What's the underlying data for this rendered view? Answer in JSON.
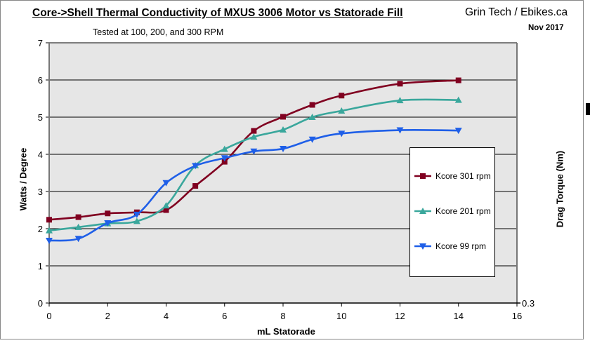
{
  "chart_data": {
    "type": "line",
    "title": "Core->Shell Thermal Conductivity of MXUS 3006 Motor vs Statorade Fill",
    "subtitle": "Tested at 100, 200, and 300 RPM",
    "brand": "Grin Tech / Ebikes.ca",
    "date": "Nov 2017",
    "xlabel": "mL Statorade",
    "ylabel": "Watts / Degree",
    "y2label": "Drag Torque (Nm)",
    "y2_tick": "0.3",
    "xlim": [
      0,
      16
    ],
    "ylim": [
      0,
      7
    ],
    "xticks": [
      "0",
      "2",
      "4",
      "6",
      "8",
      "10",
      "12",
      "14",
      "16"
    ],
    "yticks": [
      "0",
      "1",
      "2",
      "3",
      "4",
      "5",
      "6",
      "7"
    ],
    "grid": true,
    "legend_position": "right",
    "x": [
      0,
      1,
      2,
      3,
      4,
      5,
      6,
      7,
      8,
      9,
      10,
      12,
      14
    ],
    "series": [
      {
        "name": "Kcore 301 rpm",
        "color": "#800020",
        "marker": "square",
        "values": [
          2.24,
          2.31,
          2.41,
          2.44,
          2.5,
          3.15,
          3.8,
          4.63,
          5.01,
          5.33,
          5.58,
          5.9,
          5.99
        ]
      },
      {
        "name": "Kcore 201 rpm",
        "color": "#3aa79c",
        "marker": "triangle-up",
        "values": [
          1.95,
          2.04,
          2.14,
          2.2,
          2.62,
          3.7,
          4.14,
          4.47,
          4.66,
          5.0,
          5.17,
          5.45,
          5.46
        ]
      },
      {
        "name": "Kcore 99 rpm",
        "color": "#1f5fe8",
        "marker": "triangle-down",
        "values": [
          1.68,
          1.73,
          2.15,
          2.38,
          3.23,
          3.69,
          3.9,
          4.08,
          4.15,
          4.4,
          4.56,
          4.65,
          4.64
        ]
      }
    ]
  }
}
